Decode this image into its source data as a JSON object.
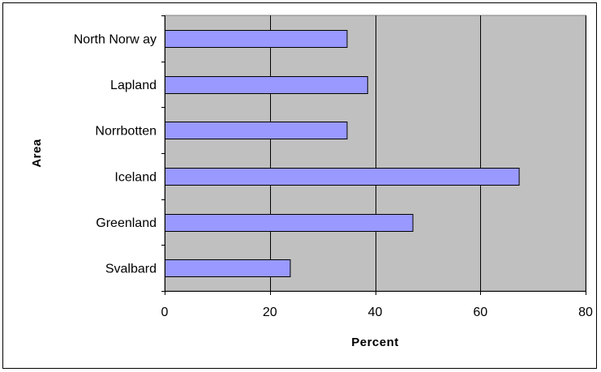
{
  "chart_data": {
    "type": "bar",
    "orientation": "horizontal",
    "title": "",
    "xlabel": "Percent",
    "ylabel": "Area",
    "categories": [
      "North Norw ay",
      "Lapland",
      "Norrbotten",
      "Iceland",
      "Greenland",
      "Svalbard"
    ],
    "values": [
      34.6,
      38.5,
      34.6,
      67.3,
      47.1,
      23.8
    ],
    "xlim": [
      0,
      80
    ],
    "xticks": [
      0,
      20,
      40,
      60,
      80
    ],
    "grid": "vertical major gridlines",
    "legend": "none",
    "colors": {
      "plot_background": "#c0c0c0",
      "bar_fill": "#9999ff",
      "bar_stroke": "#000000",
      "gridline": "#000000"
    }
  }
}
